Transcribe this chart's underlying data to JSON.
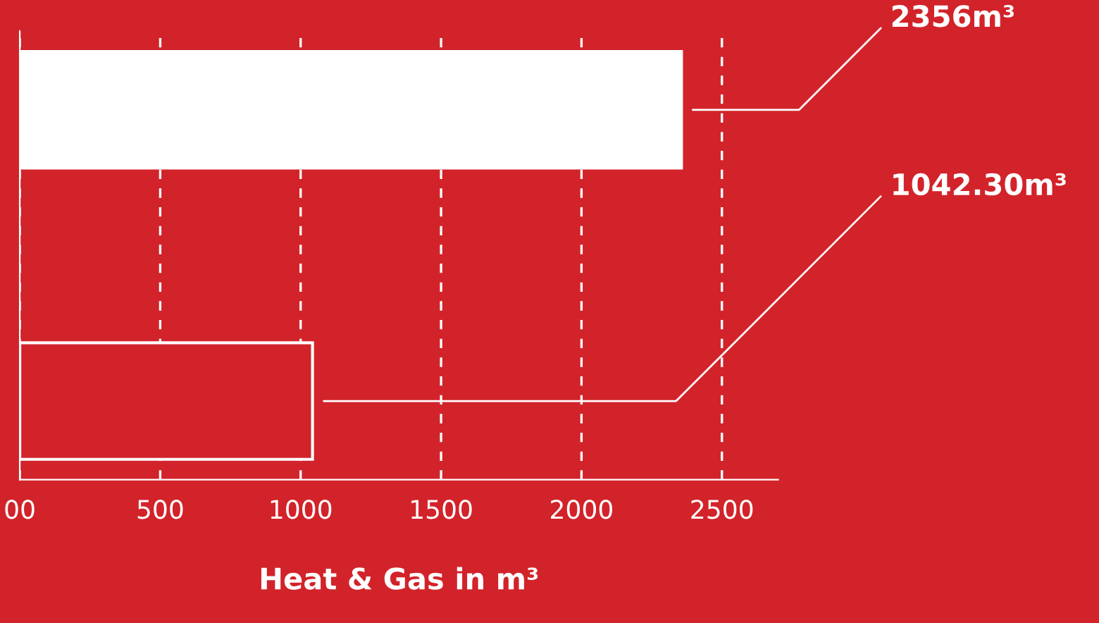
{
  "chart_data": {
    "type": "bar",
    "orientation": "horizontal",
    "categories": [
      null,
      null
    ],
    "values": [
      2356,
      1042.3
    ],
    "colors": [
      "#ffffff",
      "#d2232a"
    ],
    "value_labels": [
      "2356m³",
      "1042.30m³"
    ],
    "xlabel": "Heat & Gas in m³",
    "xlim": [
      0,
      2700
    ],
    "xticks": [
      {
        "value": 0,
        "label": "00"
      },
      500,
      1000,
      1500,
      2000,
      2500
    ],
    "grid": "x",
    "line_style": "dashed",
    "tick_labels": "x"
  }
}
